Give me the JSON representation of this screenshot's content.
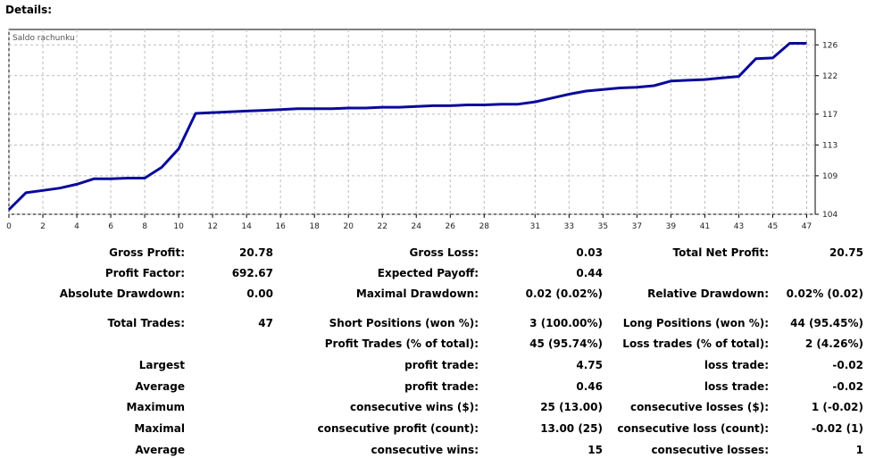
{
  "title": "Details:",
  "chart_data": {
    "type": "line",
    "title": "Saldo rachunku",
    "x_ticks": [
      0,
      2,
      4,
      6,
      8,
      10,
      12,
      14,
      16,
      18,
      20,
      22,
      24,
      26,
      28,
      31,
      33,
      35,
      37,
      39,
      41,
      43,
      45,
      47
    ],
    "y_ticks": [
      104,
      109,
      113,
      117,
      122,
      126
    ],
    "xlim": [
      0,
      47.5
    ],
    "ylim": [
      104,
      128
    ],
    "series_color": "#0a0a9a",
    "grid": true,
    "points": [
      [
        0,
        104.6
      ],
      [
        1,
        106.8
      ],
      [
        2,
        107.1
      ],
      [
        3,
        107.4
      ],
      [
        4,
        107.9
      ],
      [
        5,
        108.6
      ],
      [
        6,
        108.6
      ],
      [
        7,
        108.7
      ],
      [
        8,
        108.7
      ],
      [
        9,
        110.1
      ],
      [
        10,
        112.5
      ],
      [
        11,
        117.1
      ],
      [
        12,
        117.2
      ],
      [
        13,
        117.3
      ],
      [
        14,
        117.4
      ],
      [
        15,
        117.5
      ],
      [
        16,
        117.6
      ],
      [
        17,
        117.7
      ],
      [
        18,
        117.7
      ],
      [
        19,
        117.7
      ],
      [
        20,
        117.8
      ],
      [
        21,
        117.8
      ],
      [
        22,
        117.9
      ],
      [
        23,
        117.9
      ],
      [
        24,
        118.0
      ],
      [
        25,
        118.1
      ],
      [
        26,
        118.1
      ],
      [
        27,
        118.2
      ],
      [
        28,
        118.2
      ],
      [
        29,
        118.3
      ],
      [
        30,
        118.3
      ],
      [
        31,
        118.6
      ],
      [
        32,
        119.1
      ],
      [
        33,
        119.6
      ],
      [
        34,
        120.0
      ],
      [
        35,
        120.2
      ],
      [
        36,
        120.4
      ],
      [
        37,
        120.5
      ],
      [
        38,
        120.7
      ],
      [
        39,
        121.3
      ],
      [
        40,
        121.4
      ],
      [
        41,
        121.5
      ],
      [
        42,
        121.7
      ],
      [
        43,
        121.9
      ],
      [
        44,
        124.2
      ],
      [
        45,
        124.3
      ],
      [
        46,
        126.2
      ],
      [
        47,
        126.2
      ]
    ]
  },
  "stats": [
    {
      "label": "Gross Profit:",
      "value": "20.78",
      "label2": "Gross Loss:",
      "value2": "0.03",
      "label3": "Total Net Profit:",
      "value3": "20.75"
    },
    {
      "label": "Profit Factor:",
      "value": "692.67",
      "label2": "Expected Payoff:",
      "value2": "0.44",
      "label3": "",
      "value3": ""
    },
    {
      "label": "Absolute Drawdown:",
      "value": "0.00",
      "label2": "Maximal Drawdown:",
      "value2": "0.02 (0.02%)",
      "label3": "Relative Drawdown:",
      "value3": "0.02% (0.02)"
    },
    {
      "label": "Total Trades:",
      "value": "47",
      "label2": "Short Positions (won %):",
      "value2": "3 (100.00%)",
      "label3": "Long Positions (won %):",
      "value3": "44 (95.45%)"
    },
    {
      "label": "",
      "value": "",
      "label2": "Profit Trades (% of total):",
      "value2": "45 (95.74%)",
      "label3": "Loss trades (% of total):",
      "value3": "2 (4.26%)"
    },
    {
      "label": "Largest",
      "value": "",
      "label2": "profit trade:",
      "value2": "4.75",
      "label3": "loss trade:",
      "value3": "-0.02"
    },
    {
      "label": "Average",
      "value": "",
      "label2": "profit trade:",
      "value2": "0.46",
      "label3": "loss trade:",
      "value3": "-0.02"
    },
    {
      "label": "Maximum",
      "value": "",
      "label2": "consecutive wins ($):",
      "value2": "25 (13.00)",
      "label3": "consecutive losses ($):",
      "value3": "1 (-0.02)"
    },
    {
      "label": "Maximal",
      "value": "",
      "label2": "consecutive profit (count):",
      "value2": "13.00 (25)",
      "label3": "consecutive loss (count):",
      "value3": "-0.02 (1)"
    },
    {
      "label": "Average",
      "value": "",
      "label2": "consecutive wins:",
      "value2": "15",
      "label3": "consecutive losses:",
      "value3": "1"
    }
  ]
}
